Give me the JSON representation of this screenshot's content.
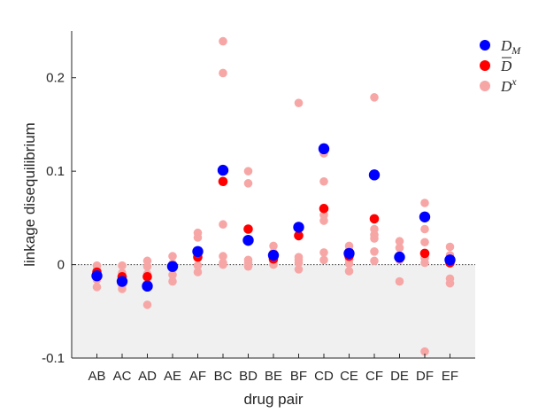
{
  "chart_data": {
    "type": "scatter",
    "title": "",
    "xlabel": "drug pair",
    "ylabel": "linkage disequilibrium",
    "ylim": [
      -0.1,
      0.25
    ],
    "yticks": [
      -0.1,
      0,
      0.1,
      0.2
    ],
    "ytick_labels": [
      "-0.1",
      "0",
      "0.1",
      "0.2"
    ],
    "categories": [
      "AB",
      "AC",
      "AD",
      "AE",
      "AF",
      "BC",
      "BD",
      "BE",
      "BF",
      "CD",
      "CE",
      "CF",
      "DE",
      "DF",
      "EF"
    ],
    "zero_line": "dotted",
    "negative_region_shaded": true,
    "legend": {
      "position": "top-right",
      "entries": [
        {
          "key": "D_M",
          "base": "D",
          "sub": "M",
          "bar": false,
          "sup": ""
        },
        {
          "key": "D_bar",
          "base": "D",
          "sub": "",
          "bar": true,
          "sup": ""
        },
        {
          "key": "D_x",
          "base": "D",
          "sub": "",
          "bar": false,
          "sup": "x"
        }
      ]
    },
    "colors": {
      "D_M": "#0000ff",
      "D_bar": "#ff0000",
      "D_x": "#f7a6a6",
      "shade": "#f0f0f0",
      "axis": "#262626"
    },
    "series": [
      {
        "key": "D_x",
        "values": [
          [
            -0.001,
            -0.006,
            -0.012,
            -0.016,
            -0.024
          ],
          [
            -0.001,
            -0.009,
            -0.017,
            -0.022,
            -0.026
          ],
          [
            0.004,
            -0.002,
            -0.01,
            -0.02,
            -0.043
          ],
          [
            0.009,
            0.001,
            -0.004,
            -0.011,
            -0.018
          ],
          [
            0.034,
            0.029,
            0.007,
            -0.001,
            -0.008
          ],
          [
            0.239,
            0.205,
            0.043,
            0.009,
            0.002,
            0.0
          ],
          [
            0.1,
            0.087,
            0.005,
            0.002,
            -0.002
          ],
          [
            0.02,
            0.013,
            0.007,
            0.003,
            0.0
          ],
          [
            0.173,
            0.008,
            0.005,
            0.002,
            -0.005
          ],
          [
            0.119,
            0.089,
            0.053,
            0.047,
            0.013,
            0.005
          ],
          [
            0.02,
            0.015,
            0.005,
            0.001,
            -0.007
          ],
          [
            0.179,
            0.038,
            0.032,
            0.028,
            0.014,
            0.004
          ],
          [
            0.025,
            0.018,
            0.01,
            0.005,
            -0.018
          ],
          [
            0.066,
            0.038,
            0.024,
            0.007,
            0.002,
            -0.093
          ],
          [
            0.019,
            0.01,
            0.002,
            -0.015,
            -0.02
          ]
        ]
      },
      {
        "key": "D_bar",
        "values": [
          -0.008,
          -0.013,
          -0.013,
          -0.002,
          0.008,
          0.089,
          0.038,
          0.006,
          0.031,
          0.06,
          0.009,
          0.049,
          0.007,
          0.012,
          0.002
        ]
      },
      {
        "key": "D_M",
        "values": [
          -0.012,
          -0.018,
          -0.023,
          -0.002,
          0.014,
          0.101,
          0.026,
          0.01,
          0.04,
          0.124,
          0.012,
          0.096,
          0.008,
          0.051,
          0.005
        ]
      }
    ]
  }
}
